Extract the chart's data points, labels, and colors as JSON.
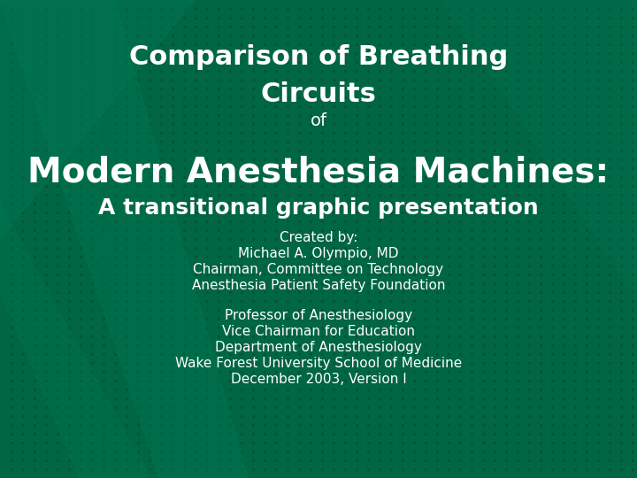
{
  "bg_color": "#006644",
  "text_color": "#ffffff",
  "title_line1": "Comparison of Breathing",
  "title_line2": "Circuits",
  "title_of": "of",
  "title_line3": "Modern Anesthesia Machines:",
  "title_line4": "A transitional graphic presentation",
  "created_line1": "Created by:",
  "created_line2": "Michael A. Olympio, MD",
  "created_line3": "Chairman, Committee on Technology",
  "created_line4": "Anesthesia Patient Safety Foundation",
  "prof_line1": "Professor of Anesthesiology",
  "prof_line2": "Vice Chairman for Education",
  "prof_line3": "Department of Anesthesiology",
  "prof_line4": "Wake Forest University School of Medicine",
  "prof_line5": "December 2003, Version I",
  "title_fontsize": 22,
  "of_fontsize": 14,
  "modern_fontsize": 28,
  "transitional_fontsize": 18,
  "created_fontsize": 11,
  "prof_fontsize": 11
}
